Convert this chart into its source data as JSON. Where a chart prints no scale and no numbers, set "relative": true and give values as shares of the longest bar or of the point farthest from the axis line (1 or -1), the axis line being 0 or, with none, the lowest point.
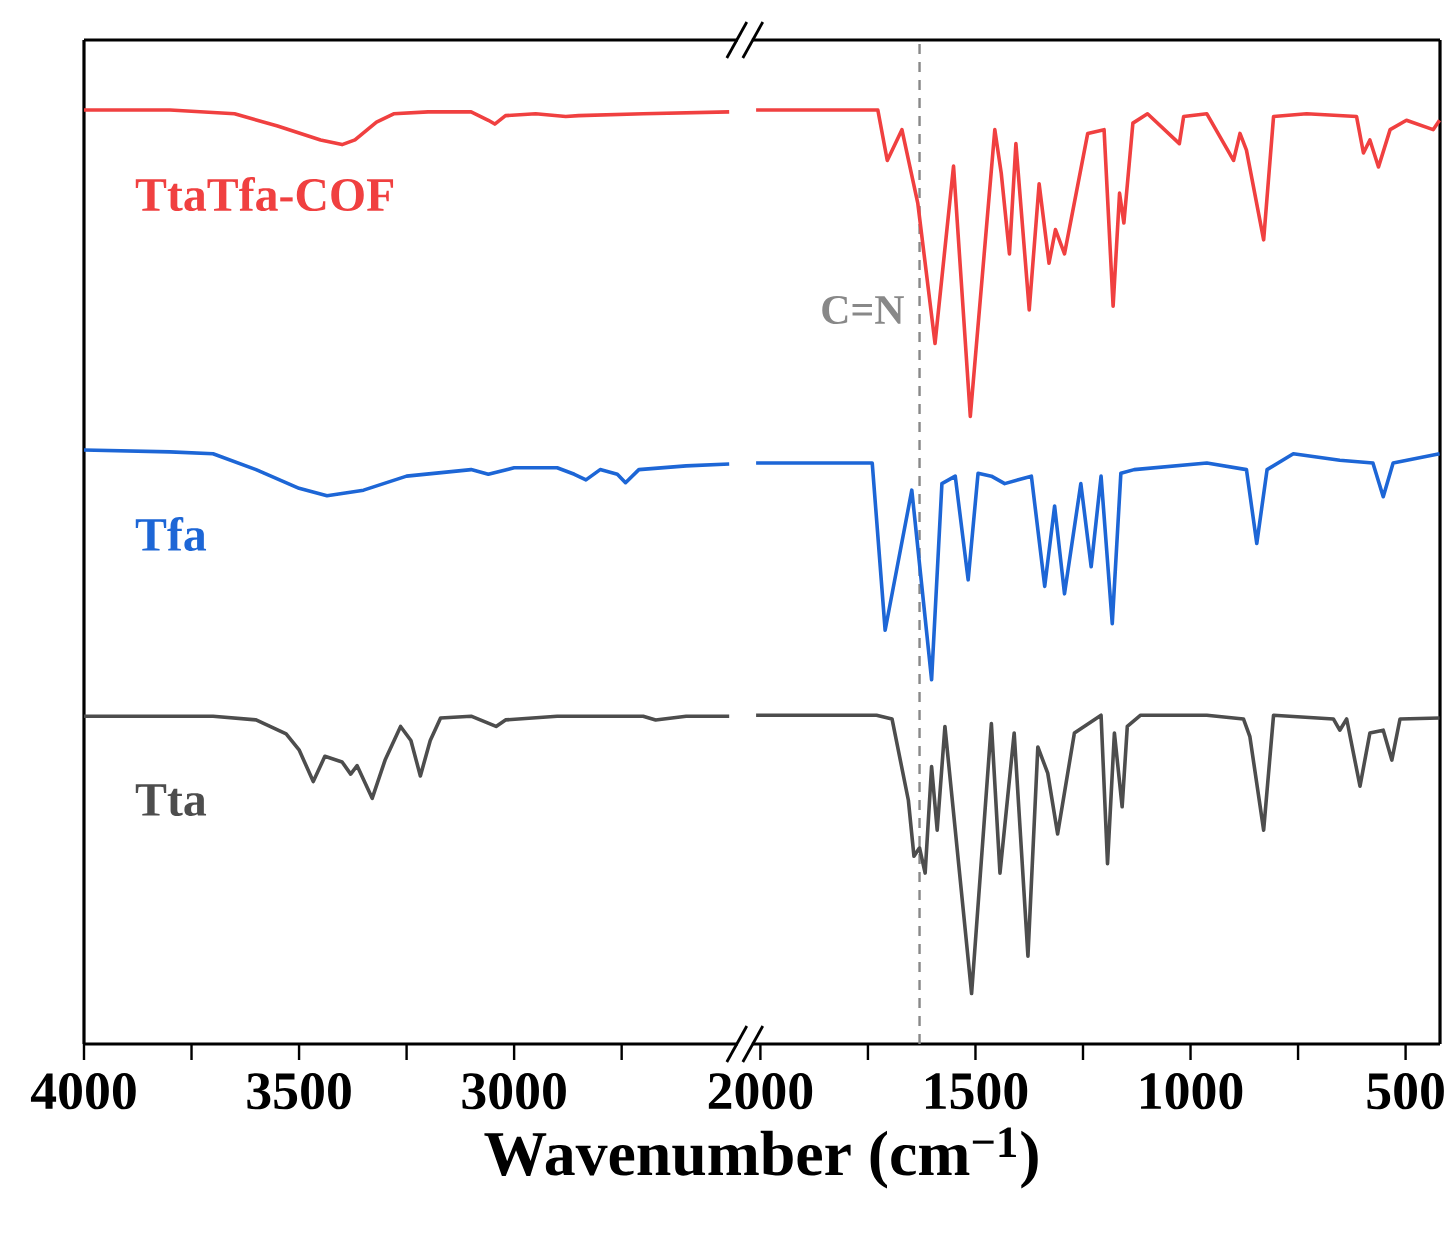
{
  "chart_data": [
    {
      "type": "line",
      "relative": true,
      "xlim": [
        4000,
        2480
      ],
      "xticks": [
        4000,
        3500,
        3000,
        {
          "value": 3750,
          "label": null
        },
        {
          "value": 3250,
          "label": null
        },
        {
          "value": 2750,
          "label": null
        }
      ],
      "xlabel": "Wavenumber (cm$^{−1}$)",
      "series": [
        {
          "name": "TtaTfa-COF",
          "color": "#f04040",
          "x": [
            4000,
            3800,
            3650,
            3550,
            3450,
            3400,
            3370,
            3320,
            3280,
            3200,
            3100,
            3060,
            3045,
            3020,
            2950,
            2880,
            2850,
            2700,
            2500
          ],
          "values": [
            1.0,
            1.0,
            0.996,
            0.983,
            0.968,
            0.963,
            0.968,
            0.987,
            0.996,
            0.998,
            0.998,
            0.989,
            0.985,
            0.994,
            0.996,
            0.993,
            0.994,
            0.996,
            0.998
          ]
        },
        {
          "name": "Tfa",
          "color": "#1d66d6",
          "x": [
            4000,
            3800,
            3700,
            3600,
            3500,
            3435,
            3350,
            3250,
            3100,
            3060,
            3000,
            2900,
            2860,
            2833,
            2800,
            2760,
            2741,
            2710,
            2600,
            2500
          ],
          "values": [
            0.636,
            0.634,
            0.632,
            0.615,
            0.595,
            0.587,
            0.593,
            0.608,
            0.615,
            0.61,
            0.617,
            0.617,
            0.61,
            0.604,
            0.615,
            0.61,
            0.601,
            0.615,
            0.619,
            0.621
          ]
        },
        {
          "name": "Tta",
          "color": "#4d4d4d",
          "x": [
            4000,
            3700,
            3600,
            3530,
            3500,
            3467,
            3440,
            3400,
            3380,
            3365,
            3330,
            3300,
            3264,
            3240,
            3218,
            3195,
            3171,
            3100,
            3042,
            3020,
            2900,
            2700,
            2671,
            2600,
            2500
          ],
          "values": [
            0.351,
            0.351,
            0.347,
            0.332,
            0.315,
            0.281,
            0.308,
            0.302,
            0.289,
            0.298,
            0.263,
            0.304,
            0.34,
            0.325,
            0.287,
            0.325,
            0.349,
            0.351,
            0.34,
            0.347,
            0.351,
            0.351,
            0.347,
            0.351,
            0.351
          ]
        }
      ]
    },
    {
      "type": "line",
      "relative": true,
      "xlim": [
        2020,
        420
      ],
      "xticks": [
        2000,
        1500,
        1000,
        500,
        {
          "value": 1750,
          "label": null
        },
        {
          "value": 1250,
          "label": null
        },
        {
          "value": 750,
          "label": null
        }
      ],
      "ref_lines": [
        {
          "axis": "x",
          "value": 1630,
          "label": "C=N",
          "color": "#888888",
          "line_style": "dashed"
        }
      ],
      "series": [
        {
          "color": "#f04040",
          "x": [
            2010,
            1727,
            1705,
            1671,
            1634,
            1594,
            1551,
            1512,
            1455,
            1440,
            1421,
            1406,
            1375,
            1352,
            1329,
            1314,
            1293,
            1239,
            1201,
            1180,
            1165,
            1155,
            1134,
            1100,
            1026,
            1016,
            962,
            900,
            885,
            870,
            830,
            807,
            730,
            614,
            598,
            583,
            563,
            536,
            498,
            436,
            421
          ],
          "values": [
            1.0,
            1.0,
            0.946,
            0.979,
            0.9,
            0.75,
            0.94,
            0.672,
            0.979,
            0.932,
            0.846,
            0.964,
            0.786,
            0.921,
            0.836,
            0.872,
            0.846,
            0.975,
            0.979,
            0.79,
            0.911,
            0.879,
            0.986,
            0.996,
            0.964,
            0.993,
            0.996,
            0.946,
            0.975,
            0.957,
            0.861,
            0.993,
            0.996,
            0.993,
            0.954,
            0.968,
            0.939,
            0.979,
            0.989,
            0.979,
            0.989
          ]
        },
        {
          "color": "#1d66d6",
          "x": [
            2010,
            1740,
            1710,
            1648,
            1602,
            1578,
            1547,
            1517,
            1494,
            1463,
            1432,
            1370,
            1339,
            1316,
            1293,
            1255,
            1231,
            1208,
            1182,
            1162,
            1131,
            962,
            870,
            846,
            822,
            761,
            653,
            576,
            552,
            529,
            421
          ],
          "values": [
            0.622,
            0.622,
            0.443,
            0.593,
            0.39,
            0.6,
            0.608,
            0.497,
            0.611,
            0.608,
            0.6,
            0.608,
            0.49,
            0.576,
            0.482,
            0.6,
            0.511,
            0.608,
            0.45,
            0.611,
            0.615,
            0.622,
            0.615,
            0.536,
            0.615,
            0.632,
            0.625,
            0.622,
            0.586,
            0.622,
            0.632
          ]
        },
        {
          "color": "#4d4d4d",
          "x": [
            2010,
            1730,
            1694,
            1656,
            1643,
            1630,
            1617,
            1602,
            1589,
            1571,
            1509,
            1463,
            1443,
            1410,
            1378,
            1355,
            1332,
            1309,
            1270,
            1208,
            1193,
            1177,
            1159,
            1147,
            1116,
            962,
            877,
            862,
            830,
            807,
            668,
            653,
            637,
            606,
            583,
            552,
            532,
            513,
            421
          ],
          "values": [
            0.352,
            0.352,
            0.348,
            0.261,
            0.201,
            0.21,
            0.183,
            0.297,
            0.229,
            0.34,
            0.054,
            0.343,
            0.183,
            0.333,
            0.094,
            0.318,
            0.29,
            0.225,
            0.333,
            0.352,
            0.193,
            0.333,
            0.254,
            0.34,
            0.352,
            0.352,
            0.348,
            0.329,
            0.229,
            0.352,
            0.348,
            0.336,
            0.348,
            0.276,
            0.333,
            0.336,
            0.304,
            0.348,
            0.349
          ]
        }
      ]
    }
  ]
}
